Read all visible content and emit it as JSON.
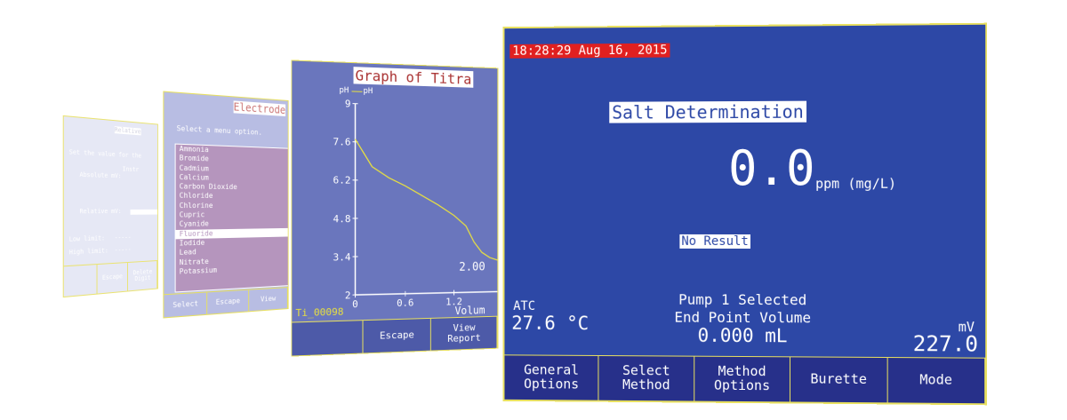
{
  "screen1": {
    "title": "Relative",
    "line1": "Set the value for the",
    "line2": "Instr",
    "line3": "Absolute mV:",
    "relative_label": "Relative mV:",
    "low_label": "Low limit:",
    "high_label": "High limit:",
    "dashes": "-----",
    "buttons": [
      "",
      "Escape",
      "Delete\nDigit"
    ]
  },
  "screen2": {
    "title": "Electrode",
    "prompt": "Select a menu option.",
    "items": [
      "Ammonia",
      "Bromide",
      "Cadmium",
      "Calcium",
      "Carbon Dioxide",
      "Chloride",
      "Chlorine",
      "Cupric",
      "Cyanide",
      "Fluoride",
      "Iodide",
      "Lead",
      "Nitrate",
      "Potassium"
    ],
    "selected_index": 9,
    "buttons": [
      "Select",
      "Escape",
      "View"
    ]
  },
  "screen3": {
    "title": "Graph of Titra",
    "legend": "pH",
    "y_label": "pH",
    "file": "Ti_00098",
    "x_label": "Volum",
    "value_label": "2.00",
    "buttons": [
      "",
      "Escape",
      "View\nReport"
    ],
    "chart_data": {
      "type": "line",
      "series": [
        {
          "name": "pH",
          "x": [
            0,
            0.1,
            0.2,
            0.4,
            0.6,
            0.8,
            1.0,
            1.2,
            1.35,
            1.45,
            1.55,
            1.65,
            1.75
          ],
          "y": [
            7.7,
            7.2,
            6.7,
            6.3,
            6.0,
            5.65,
            5.3,
            4.9,
            4.5,
            3.9,
            3.5,
            3.3,
            3.2
          ]
        }
      ],
      "ylim": [
        2,
        9
      ],
      "yticks": [
        "2",
        "3.4",
        "4.8",
        "6.2",
        "7.6",
        "9"
      ],
      "xticks": [
        "0",
        "0.6",
        "1.2"
      ],
      "color": "#e8e040"
    }
  },
  "screen4": {
    "datetime": "18:28:29 Aug 16, 2015",
    "method": "Salt Determination",
    "reading": "0.0",
    "unit": "ppm (mg/L)",
    "result": "No Result",
    "atc_label": "ATC",
    "temperature": "27.6 °C",
    "pump": "Pump 1 Selected",
    "endpoint_label": "End Point Volume",
    "endpoint_value": "0.000 mL",
    "mv_label": "mV",
    "mv_value": "227.0",
    "buttons": [
      "General\nOptions",
      "Select\nMethod",
      "Method\nOptions",
      "Burette",
      "Mode"
    ]
  }
}
